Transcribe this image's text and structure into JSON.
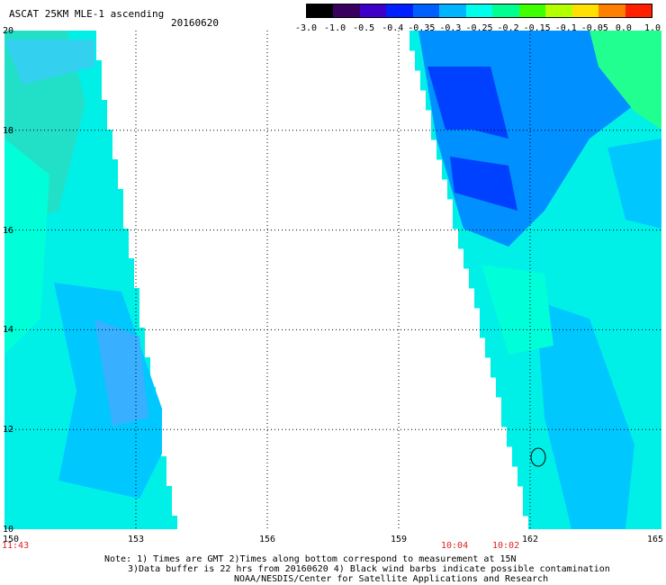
{
  "header": {
    "title": "ASCAT 25KM MLE-1 ascending",
    "date": "20160620"
  },
  "colorbar": {
    "labels": [
      "-3.0",
      "-1.0",
      "-0.5",
      "-0.4",
      "-0.35",
      "-0.3",
      "-0.25",
      "-0.2",
      "-0.15",
      "-0.1",
      "-0.05",
      "0.0",
      "1.0"
    ],
    "colors": [
      "#000000",
      "#3a0060",
      "#3c00c8",
      "#0020ff",
      "#0060ff",
      "#00b4ff",
      "#00ffea",
      "#00ff90",
      "#40ff00",
      "#b4ff00",
      "#ffe000",
      "#ff8000",
      "#ff2000"
    ]
  },
  "map": {
    "lat_range": [
      10,
      20
    ],
    "lon_range": [
      150,
      165
    ],
    "lat_ticks": [
      "20",
      "18",
      "16",
      "14",
      "12",
      "10"
    ],
    "lon_ticks": [
      "150",
      "153",
      "156",
      "159",
      "162",
      "165"
    ],
    "swath_colors": {
      "base": "#00f0e8",
      "cyan_light": "#00ffd8",
      "teal": "#22e0c8",
      "mid_blue": "#00c8ff",
      "blue": "#0090ff",
      "dark_blue": "#0040ff",
      "greenish": "#20ff90"
    }
  },
  "time_labels": {
    "left": "11:43",
    "right_a": "10:04",
    "right_b": "10:02",
    "color": "#d22020"
  },
  "notes": {
    "line1": "Note: 1) Times are GMT 2)Times along bottom correspond to measurement at 15N",
    "line2": "3)Data buffer is 22 hrs from 20160620 4) Black wind barbs indicate possible contamination",
    "line3": "NOAA/NESDIS/Center for Satellite Applications and Research"
  }
}
